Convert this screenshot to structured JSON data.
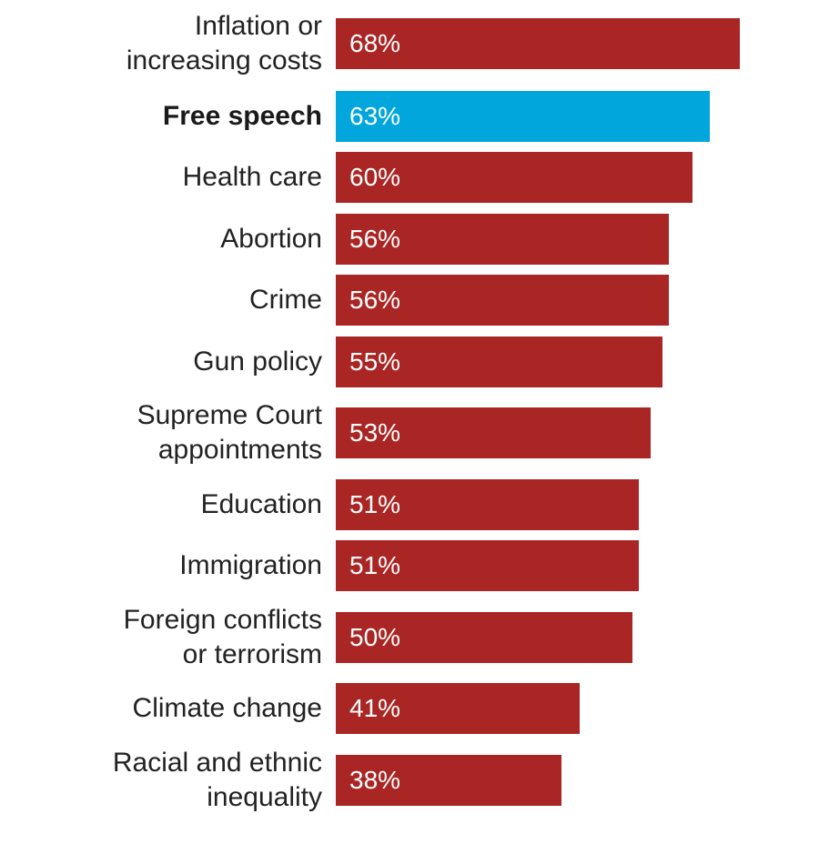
{
  "chart_data": {
    "type": "bar",
    "orientation": "horizontal",
    "unit": "%",
    "categories": [
      "Inflation or\nincreasing costs",
      "Free speech",
      "Health care",
      "Abortion",
      "Crime",
      "Gun policy",
      "Supreme Court\nappointments",
      "Education",
      "Immigration",
      "Foreign conflicts\nor terrorism",
      "Climate change",
      "Racial and ethnic\ninequality"
    ],
    "values": [
      68,
      63,
      60,
      56,
      56,
      55,
      53,
      51,
      51,
      50,
      41,
      38
    ],
    "value_labels": [
      "68%",
      "63%",
      "60%",
      "56%",
      "56%",
      "55%",
      "53%",
      "51%",
      "51%",
      "50%",
      "41%",
      "38%"
    ],
    "highlight_category": "Free speech",
    "xlim": [
      0,
      68
    ],
    "colors": {
      "default": "#a92624",
      "highlight": "#00a6dc"
    },
    "title": "",
    "xlabel": "",
    "ylabel": ""
  }
}
